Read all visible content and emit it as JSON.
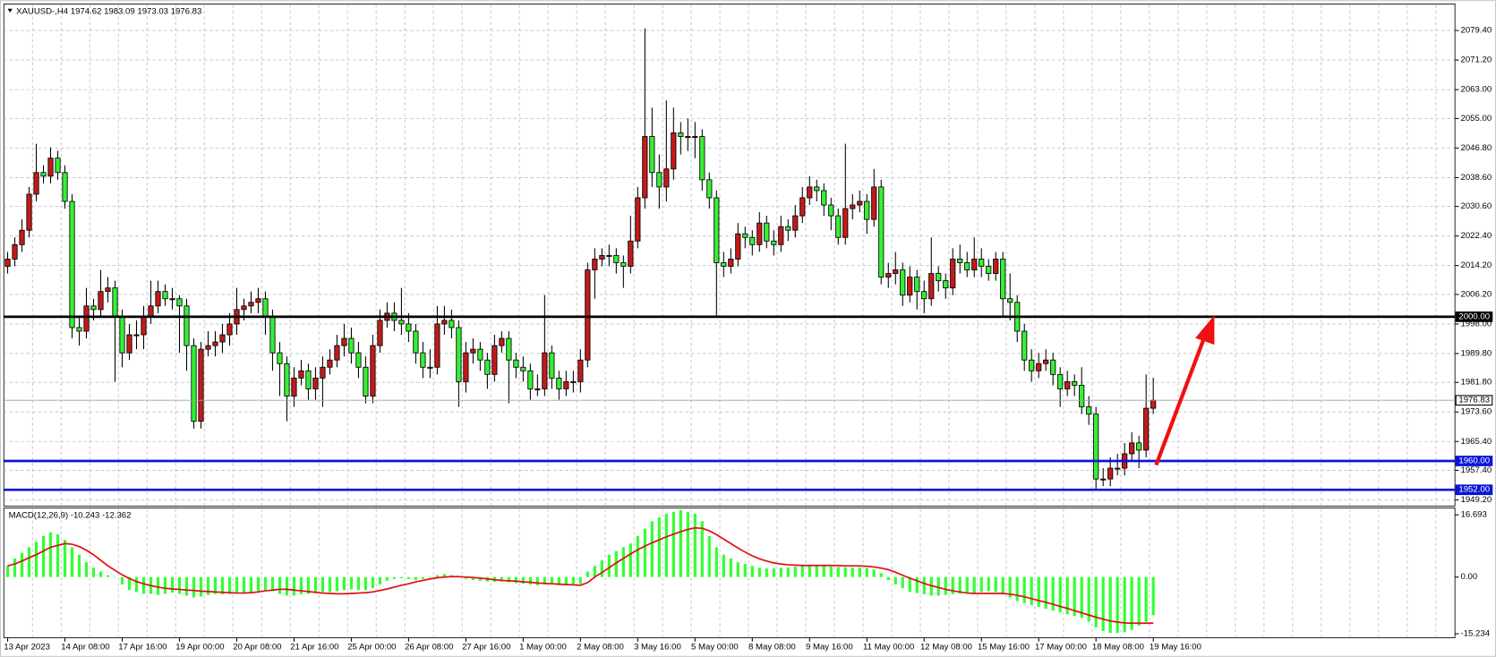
{
  "chart_data": [
    {
      "type": "candlestick",
      "title": "XAUUSD-,H4  1974.62 1983.09 1973.03 1976.83",
      "categories": [
        "13 Apr 2023",
        null,
        null,
        null,
        null,
        null,
        null,
        null,
        "14 Apr 08:00",
        null,
        null,
        null,
        null,
        null,
        null,
        null,
        "17 Apr 16:00",
        null,
        null,
        null,
        null,
        null,
        null,
        null,
        "19 Apr 00:00",
        null,
        null,
        null,
        null,
        null,
        null,
        null,
        "20 Apr 08:00",
        null,
        null,
        null,
        null,
        null,
        null,
        null,
        "21 Apr 16:00",
        null,
        null,
        null,
        null,
        null,
        null,
        null,
        "25 Apr 00:00",
        null,
        null,
        null,
        null,
        null,
        null,
        null,
        "26 Apr 08:00",
        null,
        null,
        null,
        null,
        null,
        null,
        null,
        "27 Apr 16:00",
        null,
        null,
        null,
        null,
        null,
        null,
        null,
        "1 May 00:00",
        null,
        null,
        null,
        null,
        null,
        null,
        null,
        "2 May 08:00",
        null,
        null,
        null,
        null,
        null,
        null,
        null,
        "3 May 16:00",
        null,
        null,
        null,
        null,
        null,
        null,
        null,
        "5 May 00:00",
        null,
        null,
        null,
        null,
        null,
        null,
        null,
        "8 May 08:00",
        null,
        null,
        null,
        null,
        null,
        null,
        null,
        "9 May 16:00",
        null,
        null,
        null,
        null,
        null,
        null,
        null,
        "11 May 00:00",
        null,
        null,
        null,
        null,
        null,
        null,
        null,
        "12 May 08:00",
        null,
        null,
        null,
        null,
        null,
        null,
        null,
        "15 May 16:00",
        null,
        null,
        null,
        null,
        null,
        null,
        null,
        "17 May 00:00",
        null,
        null,
        null,
        null,
        null,
        null,
        null,
        "18 May 08:00",
        null,
        null,
        null,
        null,
        null,
        null,
        null,
        "19 May 16:00"
      ],
      "open": [
        2014,
        2016,
        2020,
        2024,
        2034,
        2040,
        2039,
        2044,
        2040,
        2032,
        1997,
        1996,
        2003,
        2002,
        2007,
        2008,
        2000,
        1990,
        1995,
        1995,
        2000,
        2003,
        2007,
        2005,
        2005,
        2003,
        1992,
        1971,
        1991,
        1992,
        1993,
        1995,
        1998,
        2002,
        2003,
        2004,
        2005,
        2000,
        1990,
        1987,
        1978,
        1983,
        1985,
        1980,
        1983,
        1986,
        1988,
        1992,
        1994,
        1990,
        1986,
        1978,
        1992,
        1999,
        2001,
        1999,
        1998,
        1996,
        1990,
        1986,
        1986,
        1998,
        1999,
        1997,
        1982,
        1990,
        1991,
        1988,
        1984,
        1992,
        1994,
        1988,
        1986,
        1985,
        1980,
        1980,
        1990,
        1983,
        1980,
        1982,
        1982,
        1988,
        2013,
        2016,
        2017,
        2017,
        2015,
        2014,
        2021,
        2033,
        2050,
        2040,
        2036,
        2041,
        2051,
        2050,
        2050,
        2050,
        2038,
        2033,
        2015,
        2014,
        2016,
        2023,
        2022,
        2020,
        2026,
        2021,
        2020,
        2025,
        2024,
        2028,
        2033,
        2036,
        2035,
        2031,
        2028,
        2022,
        2030,
        2031,
        2032,
        2027,
        2036,
        2011,
        2012,
        2013,
        2006,
        2011,
        2007,
        2005,
        2012,
        2010,
        2008,
        2016,
        2015,
        2013,
        2016,
        2014,
        2012,
        2016,
        2005,
        2004,
        1996,
        1988,
        1985,
        1987,
        1988,
        1984,
        1980,
        1982,
        1981,
        1975,
        1973,
        1955,
        1955,
        1958,
        1958,
        1962,
        1965,
        1963,
        1974.62
      ],
      "high": [
        2018,
        2022,
        2027,
        2036,
        2048,
        2042,
        2047,
        2046,
        2042,
        2034,
        2000,
        2008,
        2005,
        2013,
        2011,
        2010,
        2002,
        1998,
        1999,
        2003,
        2010,
        2010,
        2009,
        2008,
        2006,
        2005,
        1994,
        1993,
        1996,
        1996,
        1998,
        2001,
        2008,
        2005,
        2007,
        2008,
        2007,
        2002,
        1993,
        1989,
        1986,
        1988,
        1987,
        1986,
        1989,
        1991,
        1995,
        1998,
        1997,
        1993,
        1989,
        1995,
        2002,
        2004,
        2004,
        2008,
        2001,
        1998,
        1993,
        1991,
        2003,
        2003,
        2002,
        1999,
        1993,
        1994,
        1993,
        1990,
        1995,
        1996,
        1996,
        1990,
        1989,
        1987,
        1984,
        2006,
        1992,
        1985,
        1985,
        1985,
        1991,
        2015,
        2019,
        2019,
        2020,
        2019,
        2017,
        2028,
        2036,
        2080,
        2058,
        2045,
        2060,
        2058,
        2054,
        2055,
        2054,
        2052,
        2040,
        2035,
        2018,
        2019,
        2026,
        2025,
        2024,
        2029,
        2028,
        2024,
        2028,
        2027,
        2031,
        2036,
        2039,
        2038,
        2037,
        2033,
        2030,
        2048,
        2034,
        2035,
        2034,
        2041,
        2038,
        2015,
        2018,
        2015,
        2014,
        2013,
        2010,
        2022,
        2014,
        2012,
        2019,
        2020,
        2018,
        2022,
        2019,
        2016,
        2018,
        2018,
        2012,
        2006,
        1998,
        1991,
        1990,
        1991,
        1990,
        1986,
        1985,
        1984,
        1986,
        1978,
        1975,
        1958,
        1961,
        1962,
        1965,
        1968,
        1967,
        1984,
        1983.09
      ],
      "low": [
        2012,
        2014,
        2018,
        2022,
        2032,
        2037,
        2037,
        2038,
        2030,
        1994,
        1992,
        1994,
        1999,
        2000,
        2004,
        1982,
        1986,
        1988,
        1991,
        1991,
        1998,
        2001,
        2003,
        2002,
        1990,
        1985,
        1969,
        1969,
        1989,
        1989,
        1990,
        1992,
        1995,
        1999,
        2001,
        2001,
        1995,
        1985,
        1978,
        1971,
        1975,
        1981,
        1977,
        1977,
        1975,
        1984,
        1986,
        1989,
        1987,
        1983,
        1976,
        1976,
        1990,
        1997,
        1996,
        1995,
        1993,
        1987,
        1983,
        1983,
        1984,
        1995,
        1994,
        1975,
        1979,
        1987,
        1985,
        1980,
        1982,
        1990,
        1976,
        1983,
        1982,
        1977,
        1978,
        1978,
        1980,
        1977,
        1978,
        1979,
        1979,
        1986,
        2005,
        2014,
        2014,
        2012,
        2008,
        2012,
        2019,
        2030,
        2036,
        2030,
        2032,
        2038,
        2045,
        2046,
        2044,
        2035,
        2030,
        2000,
        2011,
        2012,
        2014,
        2019,
        2017,
        2018,
        2019,
        2017,
        2018,
        2021,
        2022,
        2026,
        2031,
        2032,
        2028,
        2024,
        2020,
        2020,
        2027,
        2029,
        2023,
        2025,
        2009,
        2008,
        2009,
        2003,
        2004,
        2002,
        2001,
        2003,
        2007,
        2005,
        2006,
        2012,
        2011,
        2011,
        2011,
        2010,
        2010,
        2000,
        1999,
        1993,
        1985,
        1982,
        1983,
        1985,
        1981,
        1975,
        1978,
        1978,
        1973,
        1970,
        1952,
        1953,
        1953,
        1956,
        1956,
        1960,
        1958,
        1961,
        1973.03
      ],
      "close": [
        2016,
        2020,
        2024,
        2034,
        2040,
        2039,
        2044,
        2040,
        2032,
        1997,
        1996,
        2003,
        2002,
        2007,
        2008,
        2000,
        1990,
        1995,
        1995,
        2000,
        2003,
        2007,
        2005,
        2005,
        2003,
        1992,
        1971,
        1991,
        1992,
        1993,
        1995,
        1998,
        2002,
        2003,
        2004,
        2005,
        2000,
        1990,
        1987,
        1978,
        1983,
        1985,
        1980,
        1983,
        1986,
        1988,
        1992,
        1994,
        1990,
        1986,
        1978,
        1992,
        1999,
        2001,
        1999,
        1998,
        1996,
        1990,
        1986,
        1986,
        1998,
        1999,
        1997,
        1982,
        1990,
        1991,
        1988,
        1984,
        1992,
        1994,
        1988,
        1986,
        1985,
        1980,
        1980,
        1990,
        1983,
        1980,
        1982,
        1982,
        1988,
        2013,
        2016,
        2017,
        2017,
        2015,
        2014,
        2021,
        2033,
        2050,
        2040,
        2036,
        2041,
        2051,
        2050,
        2050,
        2050,
        2038,
        2033,
        2015,
        2014,
        2016,
        2023,
        2022,
        2020,
        2026,
        2021,
        2020,
        2025,
        2024,
        2028,
        2033,
        2036,
        2035,
        2031,
        2028,
        2022,
        2030,
        2031,
        2032,
        2027,
        2036,
        2011,
        2012,
        2013,
        2006,
        2011,
        2007,
        2005,
        2012,
        2010,
        2008,
        2016,
        2015,
        2013,
        2016,
        2014,
        2012,
        2016,
        2005,
        2004,
        1996,
        1988,
        1985,
        1987,
        1988,
        1984,
        1980,
        1982,
        1981,
        1975,
        1973,
        1955,
        1955,
        1958,
        1958,
        1962,
        1965,
        1963,
        1974.62,
        1976.83
      ],
      "up_color": "#c41a1a",
      "down_color": "#35f035",
      "ylim": [
        1947.5,
        2085.7
      ],
      "yticks": [
        {
          "value": 2079.4,
          "label": "2079.40"
        },
        {
          "value": 2071.2,
          "label": "2071.20"
        },
        {
          "value": 2063,
          "label": "2063.00"
        },
        {
          "value": 2055,
          "label": "2055.00"
        },
        {
          "value": 2046.8,
          "label": "2046.80"
        },
        {
          "value": 2038.6,
          "label": "2038.60"
        },
        {
          "value": 2030.6,
          "label": "2030.60"
        },
        {
          "value": 2022.4,
          "label": "2022.40"
        },
        {
          "value": 2014.2,
          "label": "2014.20"
        },
        {
          "value": 2006.2,
          "label": "2006.20"
        },
        {
          "value": 1998,
          "label": "1998.00"
        },
        {
          "value": 1989.8,
          "label": "1989.80"
        },
        {
          "value": 1981.8,
          "label": "1981.80"
        },
        {
          "value": 1973.6,
          "label": "1973.60"
        },
        {
          "value": 1965.4,
          "label": "1965.40"
        },
        {
          "value": 1957.4,
          "label": "1957.40"
        },
        {
          "value": 1949.2,
          "label": "1949.20"
        }
      ],
      "grid": true,
      "levels": [
        {
          "value": 2000,
          "label": "2000.00",
          "color": "#000000"
        },
        {
          "value": 1960,
          "label": "1960.00",
          "color": "#0a14d8"
        },
        {
          "value": 1952,
          "label": "1952.00",
          "color": "#0a14d8"
        }
      ],
      "last_price": {
        "value": 1976.83,
        "label": "1976.83",
        "color": "#a0a0a0"
      }
    },
    {
      "type": "macd",
      "title": "MACD(12,26,9) -10.243 -12.362",
      "series": [
        {
          "name": "MACD",
          "color": "#33ff33",
          "values": [
            3,
            5,
            6.5,
            8,
            9.5,
            11,
            12,
            11.5,
            10,
            8,
            6,
            4,
            2.5,
            1.5,
            0.5,
            0,
            -2,
            -3.5,
            -4,
            -4.5,
            -4.5,
            -4.8,
            -4.5,
            -4.2,
            -4.5,
            -5,
            -5.5,
            -5.2,
            -4.8,
            -4.6,
            -4.6,
            -4.5,
            -4.3,
            -4.2,
            -4,
            -3.8,
            -3.5,
            -3.8,
            -4.5,
            -5,
            -5,
            -4.6,
            -4.5,
            -4.3,
            -4,
            -4,
            -3.8,
            -3.5,
            -3.3,
            -3.5,
            -3.5,
            -3,
            -2,
            -1,
            -0.5,
            -0.3,
            -0.5,
            -0.8,
            -0.5,
            0,
            0.5,
            0.8,
            0.5,
            0.2,
            -0.5,
            -0.8,
            -1,
            -1.2,
            -1.3,
            -1.2,
            -1.4,
            -1.6,
            -1.8,
            -2,
            -2.2,
            -2,
            -2,
            -2.2,
            -2.3,
            -2.2,
            -1.8,
            1.5,
            3,
            4.5,
            6,
            7,
            8,
            9,
            11,
            13,
            15,
            16,
            17,
            17.5,
            18,
            17.5,
            17,
            15,
            11,
            8,
            6,
            5,
            4,
            3.5,
            3,
            2.5,
            2.3,
            2.3,
            2.5,
            2.6,
            2.8,
            3,
            3.2,
            3.2,
            3,
            2.8,
            2.7,
            2.6,
            2.5,
            2.6,
            2.4,
            2,
            1,
            -0.8,
            -2,
            -3,
            -4,
            -4.3,
            -4.6,
            -5,
            -5,
            -4.8,
            -4.6,
            -4.5,
            -4.4,
            -4.3,
            -4,
            -3.8,
            -4,
            -4.5,
            -5.5,
            -6.5,
            -7,
            -7.5,
            -8,
            -8.5,
            -9,
            -9.5,
            -10,
            -10.5,
            -11,
            -12,
            -13.5,
            -14.5,
            -15,
            -15,
            -14.8,
            -14.2,
            -13,
            -12,
            -10.243
          ]
        },
        {
          "name": "Signal",
          "color": "#e01010",
          "values": [
            3,
            3.5,
            4.3,
            5.2,
            6,
            7,
            8,
            8.5,
            9,
            8.8,
            8.2,
            7.2,
            6,
            4.5,
            3,
            1.8,
            0.6,
            -0.4,
            -1.2,
            -1.8,
            -2.3,
            -2.7,
            -3,
            -3.2,
            -3.3,
            -3.5,
            -3.6,
            -3.8,
            -3.9,
            -4,
            -4.1,
            -4.2,
            -4.3,
            -4.3,
            -4.2,
            -4,
            -3.7,
            -3.5,
            -3.3,
            -3.3,
            -3.5,
            -3.7,
            -3.9,
            -4.1,
            -4.3,
            -4.4,
            -4.5,
            -4.5,
            -4.4,
            -4.3,
            -4.2,
            -4,
            -3.6,
            -3.2,
            -2.7,
            -2.2,
            -1.8,
            -1.3,
            -0.9,
            -0.5,
            -0.2,
            0,
            0.1,
            0.1,
            0,
            -0.1,
            -0.3,
            -0.5,
            -0.7,
            -0.9,
            -1,
            -1.1,
            -1.3,
            -1.4,
            -1.6,
            -1.7,
            -1.8,
            -1.9,
            -2,
            -2.1,
            -2.2,
            -1.5,
            0,
            1.2,
            2.5,
            3.8,
            5,
            6.2,
            7.3,
            8.3,
            9.2,
            10,
            10.8,
            11.5,
            12.2,
            12.8,
            13.2,
            13.1,
            12.4,
            11.4,
            10.2,
            9,
            7.8,
            6.7,
            5.7,
            4.9,
            4.3,
            3.8,
            3.5,
            3.3,
            3.2,
            3.1,
            3.1,
            3.1,
            3.1,
            3.1,
            3.1,
            3,
            3,
            3,
            2.9,
            2.7,
            2.4,
            2,
            1.3,
            0.5,
            -0.3,
            -1,
            -1.7,
            -2.3,
            -2.8,
            -3.3,
            -3.7,
            -4,
            -4.3,
            -4.4,
            -4.4,
            -4.4,
            -4.4,
            -4.4,
            -4.6,
            -4.9,
            -5.3,
            -5.8,
            -6.3,
            -6.8,
            -7.3,
            -7.9,
            -8.4,
            -9,
            -9.6,
            -10.2,
            -10.8,
            -11.3,
            -11.8,
            -12.1,
            -12.3,
            -12.4,
            -12.4,
            -12.4,
            -12.362
          ]
        }
      ],
      "ylim": [
        -16.3,
        18.3
      ],
      "yticks": [
        16.693,
        {
          "value": 0,
          "label": "0.00"
        },
        -15.234
      ]
    }
  ]
}
